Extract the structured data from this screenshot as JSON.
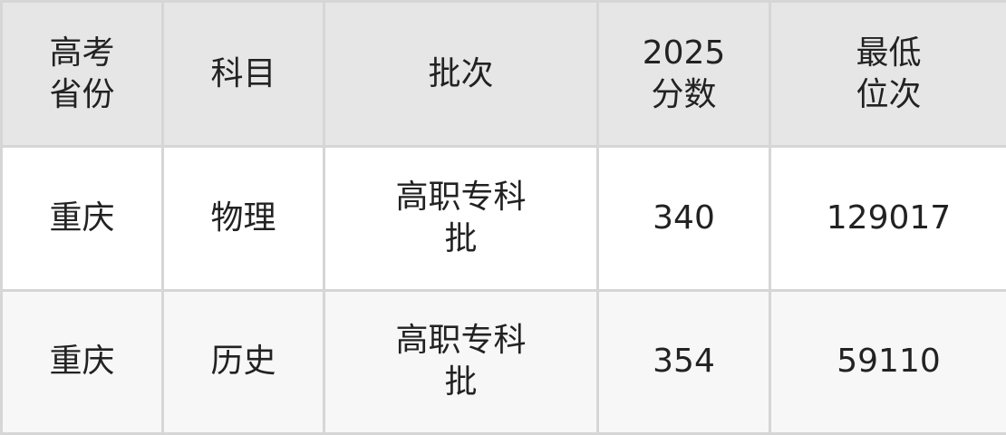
{
  "headers": [
    "高考\n省份",
    "科目",
    "批次",
    "2025\n分数",
    "最低\n位次"
  ],
  "rows": [
    [
      "重庆",
      "物理",
      "高职专科\n批",
      "340",
      "129017"
    ],
    [
      "重庆",
      "历史",
      "高职专科\n批",
      "354",
      "59110"
    ]
  ]
}
